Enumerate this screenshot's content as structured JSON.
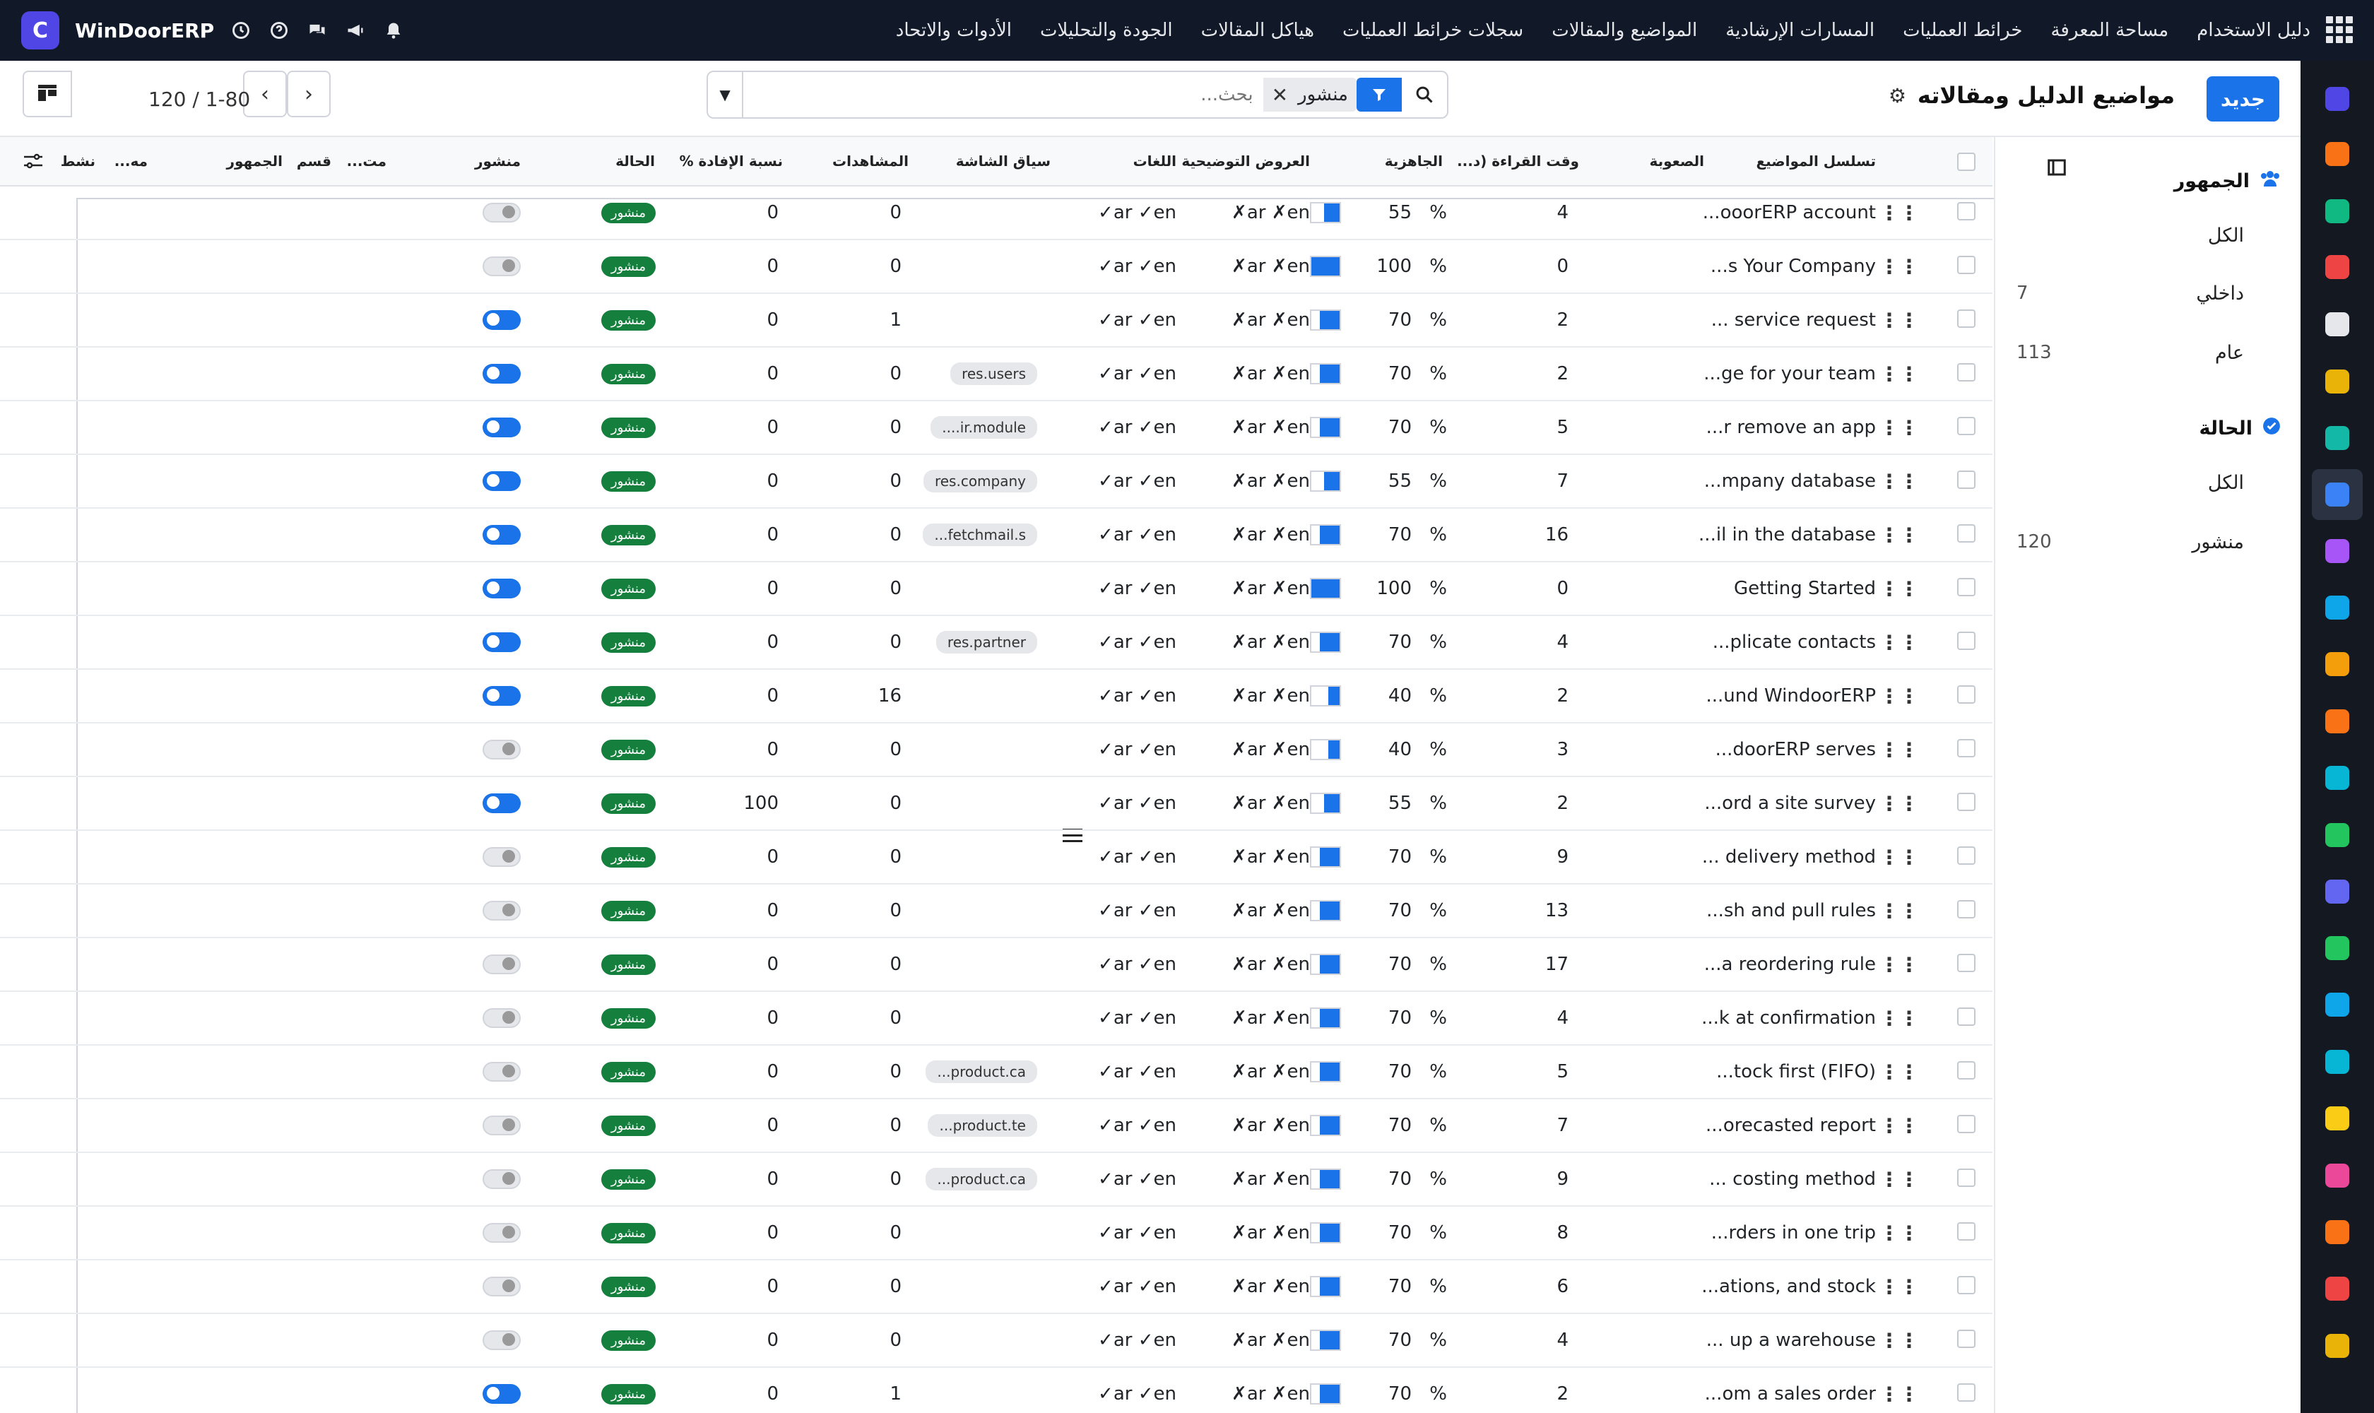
{
  "app": {
    "brand": "WinDoorERP",
    "menu": [
      "دليل الاستخدام",
      "مساحة المعرفة",
      "خرائط العمليات",
      "المسارات الإرشادية",
      "المواضيع والمقالات",
      "سجلات خرائط العمليات",
      "هياكل المقالات",
      "الجودة والتحليلات",
      "الأدوات والاتحاد"
    ]
  },
  "control": {
    "new_label": "جديد",
    "title": "مواضيع الدليل ومقالاته",
    "facet": "منشور",
    "search_placeholder": "بحث...",
    "pager": "1-80 / 120"
  },
  "panel": {
    "audience_title": "الجمهور",
    "audience_items": [
      {
        "label": "الكل",
        "count": ""
      },
      {
        "label": "داخلي",
        "count": "7"
      },
      {
        "label": "عام",
        "count": "113"
      }
    ],
    "state_title": "الحالة",
    "state_items": [
      {
        "label": "الكل",
        "count": ""
      },
      {
        "label": "منشور",
        "count": "120"
      }
    ]
  },
  "columns": {
    "sequence": "تسلسل المواضيع",
    "difficulty": "الصعوبة",
    "reading": "وقت القراءة (د...",
    "readiness": "الجاهزية",
    "demos": "العروض التوضيحية",
    "langs": "اللغات",
    "context": "سياق الشاشة",
    "views": "المشاهدات",
    "helpful": "نسبة الإفادة %",
    "state": "الحالة",
    "published": "منشور",
    "m1": "مت...",
    "section": "قسم",
    "audience": "الجمهور",
    "m2": "مه...",
    "active": "نشط"
  },
  "rows": [
    {
      "title": "ooorERP account...",
      "read": "4",
      "ready": 55,
      "ctx": "",
      "views": "0",
      "help": "0",
      "pub": false
    },
    {
      "title": "s Your Company...",
      "read": "0",
      "ready": 100,
      "ctx": "",
      "views": "0",
      "help": "0",
      "pub": false
    },
    {
      "title": "service request ...",
      "read": "2",
      "ready": 70,
      "ctx": "",
      "views": "1",
      "help": "0",
      "pub": true
    },
    {
      "title": "ge for your team...",
      "read": "2",
      "ready": 70,
      "ctx": "res.users",
      "views": "0",
      "help": "0",
      "pub": true
    },
    {
      "title": "r remove an app...",
      "read": "5",
      "ready": 70,
      "ctx": "ir.module....",
      "views": "0",
      "help": "0",
      "pub": true
    },
    {
      "title": "mpany database...",
      "read": "7",
      "ready": 55,
      "ctx": "res.company",
      "views": "0",
      "help": "0",
      "pub": true
    },
    {
      "title": "il in the database...",
      "read": "16",
      "ready": 70,
      "ctx": "fetchmail.s...",
      "views": "0",
      "help": "0",
      "pub": true
    },
    {
      "title": "Getting Started",
      "read": "0",
      "ready": 100,
      "ctx": "",
      "views": "0",
      "help": "0",
      "pub": true
    },
    {
      "title": "plicate contacts...",
      "read": "4",
      "ready": 70,
      "ctx": "res.partner",
      "views": "0",
      "help": "0",
      "pub": true
    },
    {
      "title": "und WindoorERP...",
      "read": "2",
      "ready": 40,
      "ctx": "",
      "views": "16",
      "help": "0",
      "pub": true
    },
    {
      "title": "doorERP serves...",
      "read": "3",
      "ready": 40,
      "ctx": "",
      "views": "0",
      "help": "0",
      "pub": false
    },
    {
      "title": "ord a site survey...",
      "read": "2",
      "ready": 55,
      "ctx": "",
      "views": "0",
      "help": "100",
      "pub": true
    },
    {
      "title": "delivery method ...",
      "read": "9",
      "ready": 70,
      "ctx": "",
      "views": "0",
      "help": "0",
      "pub": false
    },
    {
      "title": "sh and pull rules...",
      "read": "13",
      "ready": 70,
      "ctx": "",
      "views": "0",
      "help": "0",
      "pub": false
    },
    {
      "title": "a reordering rule...",
      "read": "17",
      "ready": 70,
      "ctx": "",
      "views": "0",
      "help": "0",
      "pub": false
    },
    {
      "title": "k at confirmation...",
      "read": "4",
      "ready": 70,
      "ctx": "",
      "views": "0",
      "help": "0",
      "pub": false
    },
    {
      "title": "tock first (FIFO)...",
      "read": "5",
      "ready": 70,
      "ctx": "product.ca...",
      "views": "0",
      "help": "0",
      "pub": false
    },
    {
      "title": "orecasted report...",
      "read": "7",
      "ready": 70,
      "ctx": "product.te...",
      "views": "0",
      "help": "0",
      "pub": false
    },
    {
      "title": "costing method ...",
      "read": "9",
      "ready": 70,
      "ctx": "product.ca...",
      "views": "0",
      "help": "0",
      "pub": false
    },
    {
      "title": "rders in one trip...",
      "read": "8",
      "ready": 70,
      "ctx": "",
      "views": "0",
      "help": "0",
      "pub": false
    },
    {
      "title": "ations, and stock...",
      "read": "6",
      "ready": 70,
      "ctx": "",
      "views": "0",
      "help": "0",
      "pub": false
    },
    {
      "title": "up a warehouse ...",
      "read": "4",
      "ready": 70,
      "ctx": "",
      "views": "0",
      "help": "0",
      "pub": false
    },
    {
      "title": "om a sales order...",
      "read": "2",
      "ready": 70,
      "ctx": "",
      "views": "1",
      "help": "0",
      "pub": true
    }
  ],
  "cells": {
    "pct": "%",
    "langs": "ar ✓en✓",
    "demos": "ar ✗en✗",
    "state": "منشور"
  },
  "rail_colors": [
    "#4f46e5",
    "#f97316",
    "#10b981",
    "#ef4444",
    "#e5e7eb",
    "#eab308",
    "#14b8a6",
    "#3b82f6",
    "#a855f7",
    "#0ea5e9",
    "#f59e0b",
    "#f97316",
    "#06b6d4",
    "#22c55e",
    "#6366f1",
    "#22c55e",
    "#0ea5e9",
    "#06b6d4",
    "#facc15",
    "#ec4899",
    "#f97316",
    "#ef4444",
    "#eab308"
  ]
}
